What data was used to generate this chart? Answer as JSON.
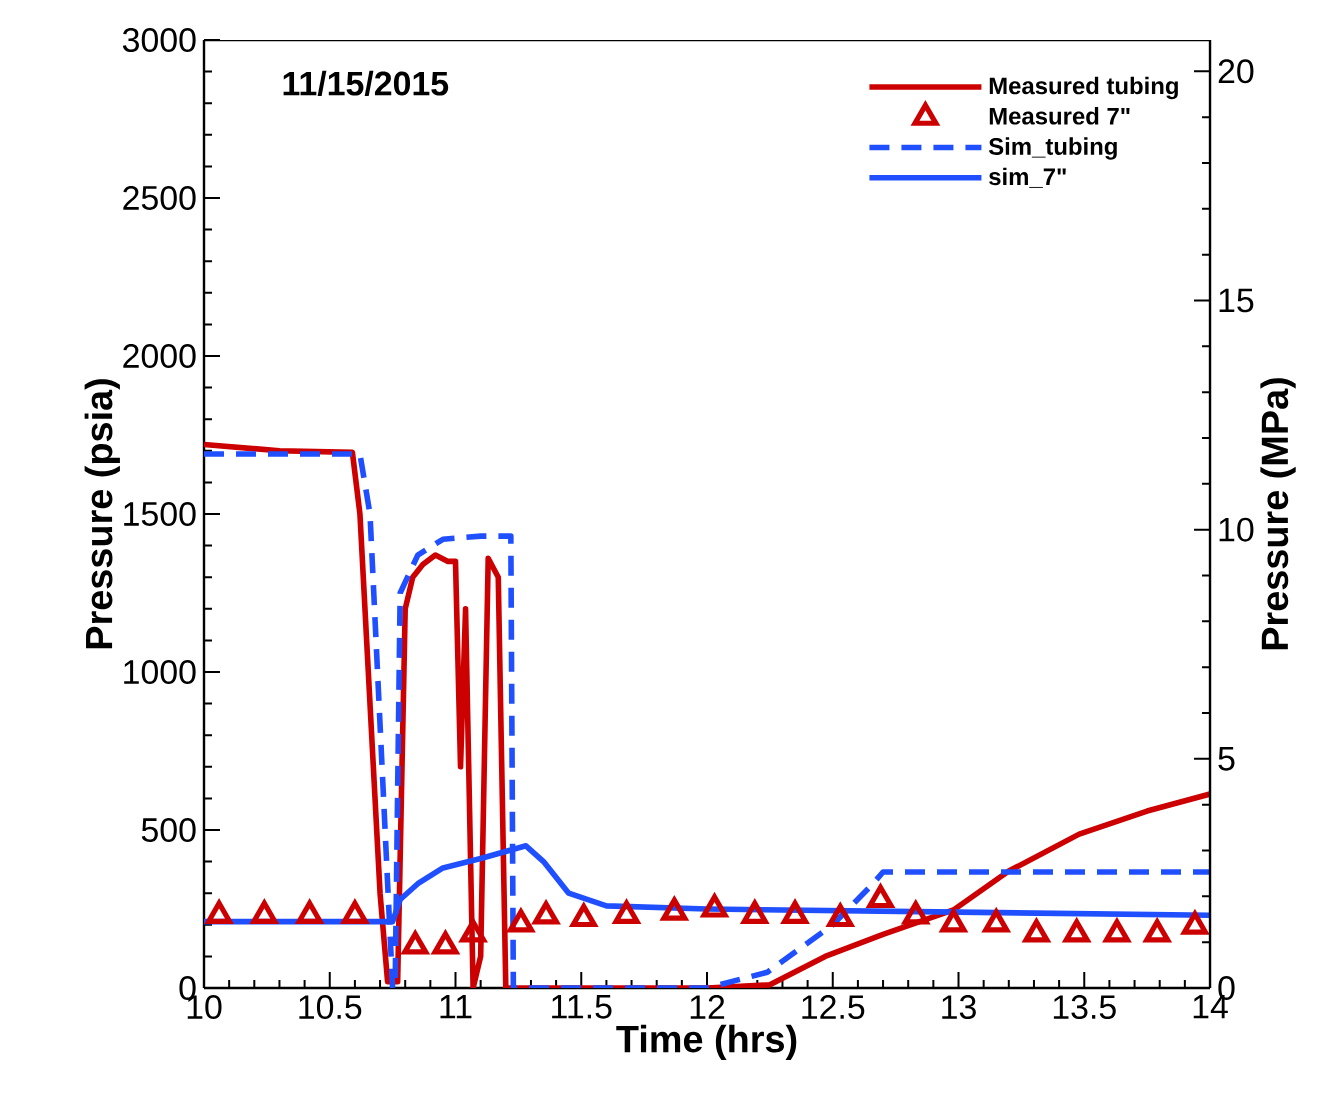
{
  "chart_data": {
    "type": "line",
    "xlabel": "Time (hrs)",
    "ylabel": "Pressure (psia)",
    "y2label": "Pressure (MPa)",
    "annotations": [
      "11/15/2015"
    ],
    "xlim": [
      10,
      14
    ],
    "xticks": [
      10,
      10.5,
      11,
      11.5,
      12,
      12.5,
      13,
      13.5,
      14
    ],
    "ylim": [
      0,
      3000
    ],
    "yticks": [
      0,
      500,
      1000,
      1500,
      2000,
      2500,
      3000
    ],
    "y2lim": [
      0,
      20.684
    ],
    "y2ticks": [
      0,
      5,
      10,
      15,
      20
    ],
    "legend": "top right",
    "grid": false,
    "series": [
      {
        "name": "Measured tubing",
        "color": "#cc0000",
        "line_style": "solid",
        "x": [
          10,
          10.3,
          10.59,
          10.62,
          10.7,
          10.73,
          10.77,
          10.8,
          10.83,
          10.87,
          10.92,
          10.97,
          11.0,
          11.02,
          11.04,
          11.07,
          11.1,
          11.13,
          11.17,
          11.2,
          11.5,
          12.0,
          12.25,
          12.47,
          12.7,
          12.98,
          13.2,
          13.48,
          13.75,
          14
        ],
        "values": [
          1720,
          1700,
          1695,
          1500,
          300,
          20,
          20,
          1200,
          1300,
          1340,
          1370,
          1350,
          1350,
          700,
          1200,
          0,
          100,
          1360,
          1300,
          0,
          0,
          0,
          10,
          100,
          170,
          247,
          370,
          487,
          560,
          614
        ]
      },
      {
        "name": "Measured 7\"",
        "type": "scatter",
        "color": "#cc0000",
        "marker": "triangle",
        "x": [
          10.06,
          10.24,
          10.42,
          10.6,
          10.84,
          10.96,
          11.07,
          11.26,
          11.36,
          11.51,
          11.68,
          11.87,
          12.03,
          12.19,
          12.35,
          12.53,
          12.69,
          12.83,
          12.98,
          13.15,
          13.31,
          13.47,
          13.63,
          13.79,
          13.94
        ],
        "values": [
          230,
          230,
          230,
          230,
          133,
          133,
          171,
          203,
          228,
          220,
          230,
          240,
          250,
          230,
          230,
          220,
          280,
          228,
          203,
          203,
          171,
          171,
          171,
          171,
          196
        ]
      },
      {
        "name": "Sim_tubing",
        "color": "#1f4fff",
        "line_style": "dashed",
        "x": [
          10,
          10.62,
          10.66,
          10.75,
          10.76,
          10.78,
          10.85,
          10.95,
          11.1,
          11.22,
          11.23,
          11.5,
          12.0,
          12.24,
          12.5,
          12.66,
          12.7,
          14
        ],
        "values": [
          1690,
          1690,
          1500,
          0,
          0,
          1250,
          1370,
          1420,
          1430,
          1430,
          0,
          0,
          0,
          50,
          200,
          330,
          367,
          367
        ]
      },
      {
        "name": "sim_7\"",
        "color": "#1f4fff",
        "line_style": "solid",
        "x": [
          10,
          10.75,
          10.78,
          10.85,
          10.95,
          11.1,
          11.28,
          11.35,
          11.45,
          11.6,
          12.0,
          13.0,
          14
        ],
        "values": [
          210,
          210,
          280,
          330,
          380,
          410,
          450,
          400,
          300,
          260,
          250,
          240,
          230
        ]
      }
    ]
  }
}
